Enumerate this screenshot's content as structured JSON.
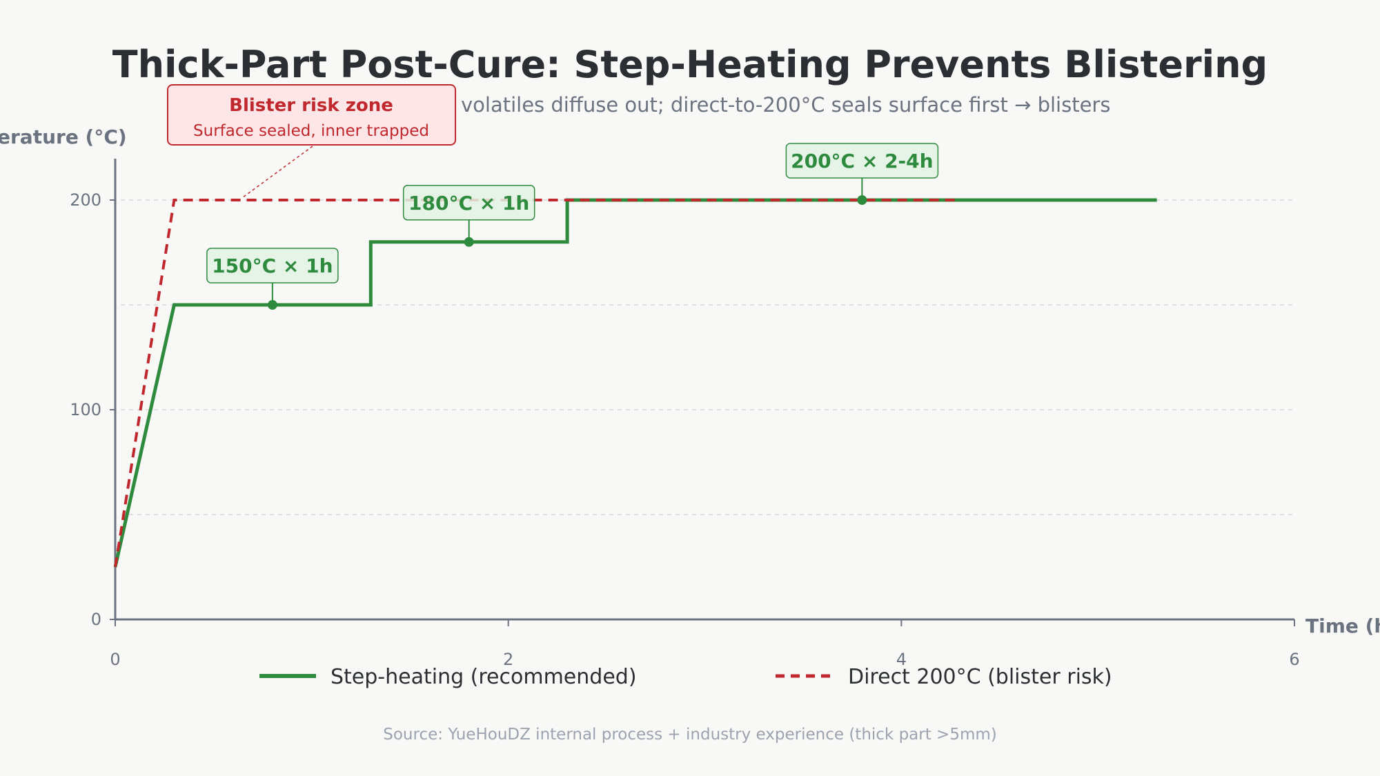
{
  "chart_data": {
    "type": "line",
    "title": "Thick-Part Post-Cure: Step-Heating Prevents Blistering",
    "subtitle": "volatiles diffuse out; direct-to-200°C seals surface first → blisters",
    "xlabel": "Time (h)",
    "ylabel": "erature (°C)",
    "xlim": [
      0,
      6
    ],
    "ylim": [
      0,
      220
    ],
    "xticks": [
      0,
      2,
      4,
      6
    ],
    "yticks": [
      0,
      100,
      200
    ],
    "gridlines_y": [
      50,
      100,
      150,
      200
    ],
    "grid": true,
    "legend_position": "bottom",
    "series": [
      {
        "name": "Step-heating (recommended)",
        "color": "#2e8b3e",
        "style": "solid",
        "points": [
          [
            0,
            25
          ],
          [
            0.3,
            150
          ],
          [
            1.3,
            150
          ],
          [
            1.3,
            180
          ],
          [
            2.3,
            180
          ],
          [
            2.3,
            200
          ],
          [
            5.3,
            200
          ]
        ]
      },
      {
        "name": "Direct 200°C (blister risk)",
        "color": "#c0282d",
        "style": "dashed",
        "points": [
          [
            0,
            25
          ],
          [
            0.3,
            200
          ],
          [
            4.3,
            200
          ]
        ]
      }
    ],
    "annotations": [
      {
        "text": "150°C × 1h",
        "x": 0.8,
        "y": 150
      },
      {
        "text": "180°C × 1h",
        "x": 1.8,
        "y": 180
      },
      {
        "text": "200°C × 2-4h",
        "x": 3.8,
        "y": 200
      }
    ],
    "risk_callout": {
      "title": "Blister risk zone",
      "text": "Surface sealed, inner trapped",
      "target_x": 0.65,
      "target_y": 200
    },
    "source": "Source: YueHouDZ internal process + industry experience (thick part >5mm)"
  },
  "colors": {
    "background": "#f8f8f6",
    "step": "#2e8b3e",
    "direct": "#c0282d",
    "axis": "#6b7280"
  }
}
